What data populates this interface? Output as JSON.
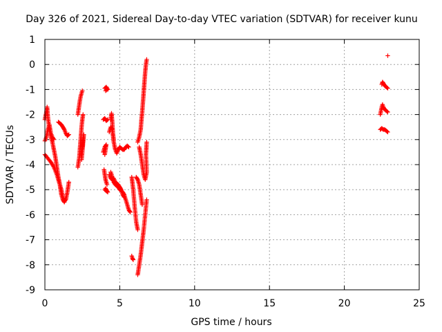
{
  "chart_data": {
    "type": "scatter",
    "title": "Day 326 of 2021, Sidereal Day-to-day VTEC variation (SDTVAR) for receiver kunu",
    "xlabel": "GPS time / hours",
    "ylabel": "SDTVAR / TECUs",
    "xlim": [
      0,
      25
    ],
    "ylim": [
      -9,
      1
    ],
    "xticks": [
      0,
      5,
      10,
      15,
      20,
      25
    ],
    "yticks": [
      -9,
      -8,
      -7,
      -6,
      -5,
      -4,
      -3,
      -2,
      -1,
      0,
      1
    ],
    "xtick_labels": [
      "0",
      "5",
      "10",
      "15",
      "20",
      "25"
    ],
    "ytick_labels": [
      "-9",
      "-8",
      "-7",
      "-6",
      "-5",
      "-4",
      "-3",
      "-2",
      "-1",
      "0",
      "1"
    ],
    "grid": true,
    "legend": "none",
    "marker": "plus",
    "marker_color": "#ff0000",
    "segments": [
      {
        "points": [
          [
            0.0,
            -3.6
          ],
          [
            0.2,
            -3.75
          ],
          [
            0.4,
            -3.9
          ],
          [
            0.6,
            -4.1
          ],
          [
            0.8,
            -4.4
          ],
          [
            1.0,
            -4.8
          ],
          [
            1.1,
            -5.0
          ],
          [
            1.2,
            -5.3
          ],
          [
            1.3,
            -5.45
          ],
          [
            1.4,
            -5.4
          ],
          [
            1.5,
            -5.1
          ],
          [
            1.6,
            -4.7
          ]
        ]
      },
      {
        "points": [
          [
            0.0,
            -2.2
          ],
          [
            0.1,
            -1.9
          ],
          [
            0.15,
            -1.7
          ],
          [
            0.2,
            -2.1
          ],
          [
            0.3,
            -2.6
          ],
          [
            0.4,
            -2.9
          ],
          [
            0.5,
            -3.1
          ],
          [
            0.6,
            -3.4
          ],
          [
            0.7,
            -3.7
          ],
          [
            0.8,
            -4.1
          ],
          [
            0.9,
            -4.5
          ],
          [
            1.0,
            -4.8
          ],
          [
            1.1,
            -5.2
          ],
          [
            1.2,
            -5.4
          ],
          [
            1.3,
            -5.5
          ],
          [
            1.4,
            -5.35
          ]
        ]
      },
      {
        "points": [
          [
            0.0,
            -3.05
          ],
          [
            0.1,
            -2.9
          ],
          [
            0.2,
            -2.6
          ],
          [
            0.3,
            -2.4
          ],
          [
            0.4,
            -2.75
          ],
          [
            0.5,
            -2.9
          ],
          [
            0.6,
            -3.0
          ]
        ]
      },
      {
        "points": [
          [
            0.9,
            -2.3
          ],
          [
            1.0,
            -2.35
          ],
          [
            1.1,
            -2.4
          ],
          [
            1.2,
            -2.5
          ],
          [
            1.3,
            -2.6
          ],
          [
            1.4,
            -2.75
          ],
          [
            1.5,
            -2.85
          ],
          [
            1.6,
            -2.8
          ]
        ]
      },
      {
        "points": [
          [
            2.2,
            -4.1
          ],
          [
            2.3,
            -3.7
          ],
          [
            2.35,
            -3.3
          ],
          [
            2.4,
            -2.9
          ],
          [
            2.45,
            -2.5
          ],
          [
            2.5,
            -2.2
          ],
          [
            2.55,
            -2.0
          ]
        ]
      },
      {
        "points": [
          [
            2.2,
            -2.0
          ],
          [
            2.25,
            -1.8
          ],
          [
            2.3,
            -1.6
          ],
          [
            2.35,
            -1.4
          ],
          [
            2.4,
            -1.25
          ],
          [
            2.45,
            -1.15
          ],
          [
            2.5,
            -1.05
          ]
        ]
      },
      {
        "points": [
          [
            2.4,
            -3.6
          ],
          [
            2.5,
            -3.3
          ],
          [
            2.55,
            -3.0
          ],
          [
            2.6,
            -2.8
          ],
          [
            2.5,
            -3.5
          ],
          [
            2.45,
            -3.8
          ]
        ]
      },
      {
        "points": [
          [
            4.0,
            -0.95
          ],
          [
            4.1,
            -0.9
          ],
          [
            4.2,
            -1.0
          ],
          [
            4.05,
            -1.05
          ]
        ]
      },
      {
        "points": [
          [
            3.9,
            -2.2
          ],
          [
            4.0,
            -2.15
          ],
          [
            4.1,
            -2.25
          ],
          [
            4.2,
            -2.2
          ]
        ]
      },
      {
        "points": [
          [
            3.9,
            -3.5
          ],
          [
            4.0,
            -3.3
          ],
          [
            4.1,
            -3.2
          ],
          [
            4.0,
            -3.6
          ]
        ]
      },
      {
        "points": [
          [
            3.95,
            -4.2
          ],
          [
            4.0,
            -4.4
          ],
          [
            4.05,
            -4.6
          ],
          [
            4.1,
            -4.7
          ],
          [
            4.15,
            -4.8
          ]
        ]
      },
      {
        "points": [
          [
            4.0,
            -5.0
          ],
          [
            4.1,
            -5.05
          ],
          [
            4.2,
            -5.1
          ],
          [
            4.05,
            -4.95
          ]
        ]
      },
      {
        "points": [
          [
            4.3,
            -2.7
          ],
          [
            4.4,
            -2.5
          ],
          [
            4.5,
            -2.6
          ],
          [
            4.6,
            -3.1
          ],
          [
            4.7,
            -3.4
          ],
          [
            4.8,
            -3.55
          ],
          [
            4.9,
            -3.4
          ],
          [
            5.0,
            -3.3
          ],
          [
            5.1,
            -3.35
          ],
          [
            5.2,
            -3.4
          ],
          [
            5.3,
            -3.4
          ],
          [
            5.4,
            -3.3
          ],
          [
            5.5,
            -3.25
          ],
          [
            5.6,
            -3.3
          ]
        ]
      },
      {
        "points": [
          [
            4.4,
            -2.2
          ],
          [
            4.45,
            -1.95
          ],
          [
            4.5,
            -2.3
          ],
          [
            4.55,
            -2.8
          ],
          [
            4.6,
            -3.0
          ]
        ]
      },
      {
        "points": [
          [
            4.4,
            -4.3
          ],
          [
            4.5,
            -4.5
          ],
          [
            4.6,
            -4.7
          ],
          [
            4.7,
            -4.8
          ],
          [
            4.8,
            -4.85
          ],
          [
            4.9,
            -4.9
          ],
          [
            5.0,
            -5.0
          ],
          [
            5.1,
            -5.05
          ],
          [
            5.2,
            -5.1
          ],
          [
            5.3,
            -5.2
          ],
          [
            5.4,
            -5.4
          ],
          [
            5.5,
            -5.6
          ],
          [
            5.6,
            -5.8
          ],
          [
            5.7,
            -5.9
          ]
        ]
      },
      {
        "points": [
          [
            4.3,
            -4.4
          ],
          [
            4.4,
            -4.55
          ],
          [
            4.5,
            -4.6
          ],
          [
            4.6,
            -4.55
          ],
          [
            4.7,
            -4.7
          ],
          [
            4.8,
            -4.75
          ],
          [
            4.9,
            -4.8
          ],
          [
            5.0,
            -4.9
          ],
          [
            5.1,
            -5.0
          ],
          [
            5.2,
            -5.2
          ],
          [
            5.3,
            -5.3
          ]
        ]
      },
      {
        "points": [
          [
            5.8,
            -4.5
          ],
          [
            5.9,
            -5.0
          ],
          [
            6.0,
            -5.7
          ],
          [
            6.1,
            -6.3
          ],
          [
            6.2,
            -6.6
          ]
        ]
      },
      {
        "points": [
          [
            5.8,
            -7.65
          ],
          [
            5.85,
            -7.75
          ],
          [
            5.9,
            -7.8
          ]
        ]
      },
      {
        "points": [
          [
            6.1,
            -4.5
          ],
          [
            6.2,
            -4.6
          ],
          [
            6.3,
            -4.8
          ],
          [
            6.4,
            -5.2
          ],
          [
            6.5,
            -5.6
          ]
        ]
      },
      {
        "points": [
          [
            6.2,
            -8.4
          ],
          [
            6.3,
            -8.0
          ],
          [
            6.4,
            -7.6
          ],
          [
            6.5,
            -7.1
          ],
          [
            6.6,
            -6.6
          ],
          [
            6.7,
            -6.0
          ],
          [
            6.8,
            -5.4
          ]
        ]
      },
      {
        "points": [
          [
            6.2,
            -3.1
          ],
          [
            6.3,
            -2.9
          ],
          [
            6.4,
            -2.6
          ],
          [
            6.45,
            -2.2
          ],
          [
            6.5,
            -1.9
          ],
          [
            6.55,
            -1.5
          ],
          [
            6.6,
            -1.1
          ],
          [
            6.65,
            -0.7
          ],
          [
            6.7,
            -0.3
          ],
          [
            6.75,
            0.0
          ],
          [
            6.8,
            0.2
          ]
        ]
      },
      {
        "points": [
          [
            6.3,
            -3.3
          ],
          [
            6.4,
            -3.6
          ],
          [
            6.5,
            -4.0
          ],
          [
            6.6,
            -4.4
          ],
          [
            6.7,
            -4.6
          ],
          [
            6.8,
            -4.3
          ],
          [
            6.75,
            -3.6
          ],
          [
            6.8,
            -3.1
          ]
        ]
      },
      {
        "points": [
          [
            22.5,
            -0.8
          ],
          [
            22.55,
            -0.7
          ],
          [
            22.6,
            -0.75
          ],
          [
            22.7,
            -0.85
          ],
          [
            22.8,
            -0.9
          ],
          [
            22.9,
            -0.95
          ]
        ]
      },
      {
        "points": [
          [
            22.4,
            -2.0
          ],
          [
            22.5,
            -1.7
          ],
          [
            22.55,
            -1.6
          ],
          [
            22.6,
            -1.7
          ],
          [
            22.7,
            -1.8
          ],
          [
            22.8,
            -1.85
          ],
          [
            22.9,
            -1.9
          ]
        ]
      },
      {
        "points": [
          [
            22.4,
            -2.6
          ],
          [
            22.5,
            -2.55
          ],
          [
            22.6,
            -2.6
          ],
          [
            22.7,
            -2.6
          ],
          [
            22.8,
            -2.65
          ],
          [
            22.9,
            -2.7
          ]
        ]
      },
      {
        "points": [
          [
            22.9,
            0.35
          ]
        ]
      }
    ]
  }
}
